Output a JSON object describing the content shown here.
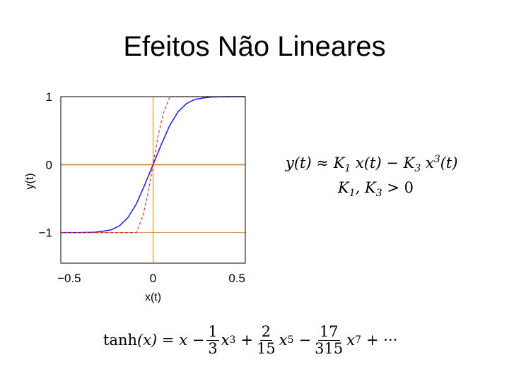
{
  "slide": {
    "title": "Efeitos Não Lineares"
  },
  "equations": {
    "approx_lhs": "y(t)",
    "approx_symbol": "≈",
    "approx_term1_coef": "K",
    "approx_term1_sub": "1",
    "approx_term1_var": "x(t)",
    "approx_minus": "−",
    "approx_term2_coef": "K",
    "approx_term2_sub": "3",
    "approx_term2_var": "x",
    "approx_term2_exp": "3",
    "approx_term2_arg": "(t)",
    "cond_k1": "K",
    "cond_k1_sub": "1",
    "cond_sep": ",",
    "cond_k3": "K",
    "cond_k3_sub": "3",
    "cond_rel": "> 0",
    "series_fn": "tanh",
    "series_arg": "(x) = x −",
    "f1_num": "1",
    "f1_den": "3",
    "t1_var": "x",
    "t1_exp": "3",
    "op1": "+",
    "f2_num": "2",
    "f2_den": "15",
    "t2_var": "x",
    "t2_exp": "5",
    "op2": "−",
    "f3_num": "17",
    "f3_den": "315",
    "t3_var": "x",
    "t3_exp": "7",
    "tail": "+ ···"
  },
  "chart_data": {
    "type": "line",
    "xlabel": "x(t)",
    "ylabel": "y(t)",
    "xlim": [
      -0.55,
      0.55
    ],
    "ylim": [
      -1.45,
      1.0
    ],
    "xticks": [
      -0.5,
      0,
      0.5
    ],
    "xtick_labels": [
      "−0.5",
      "0",
      "0.5"
    ],
    "yticks": [
      1,
      0,
      -1
    ],
    "ytick_labels": [
      "1",
      "0",
      "−1"
    ],
    "series": [
      {
        "color": "#1a1aff",
        "style": "solid",
        "x": [
          -0.55,
          -0.45,
          -0.35,
          -0.3,
          -0.25,
          -0.2,
          -0.15,
          -0.1,
          -0.05,
          0,
          0.05,
          0.1,
          0.15,
          0.2,
          0.25,
          0.3,
          0.35,
          0.45,
          0.55
        ],
        "y": [
          -1,
          -1,
          -0.995,
          -0.98,
          -0.96,
          -0.9,
          -0.78,
          -0.58,
          -0.3,
          0,
          0.3,
          0.58,
          0.78,
          0.9,
          0.96,
          0.98,
          0.995,
          1,
          1
        ]
      },
      {
        "color": "#e03030",
        "style": "dashed",
        "x": [
          -0.55,
          -0.1,
          -0.06,
          -0.03,
          0,
          0.03,
          0.06,
          0.1,
          0.55
        ],
        "y": [
          -1,
          -1,
          -0.75,
          -0.42,
          0,
          0.42,
          0.75,
          1,
          1
        ]
      }
    ],
    "grid_color": "#d89050",
    "grid": "zero-lines and tick lines"
  }
}
